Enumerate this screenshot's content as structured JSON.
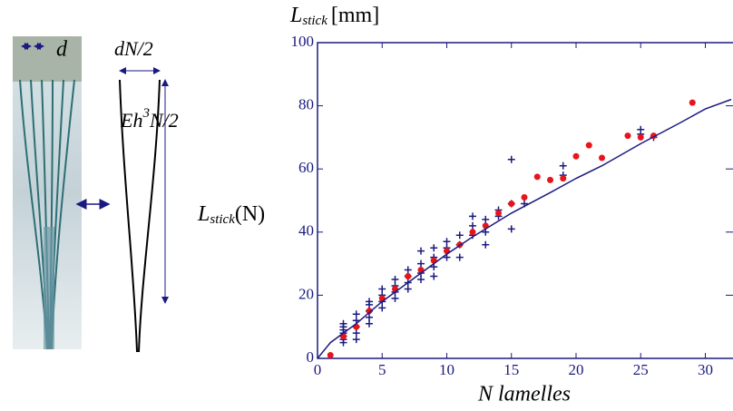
{
  "chart_data": {
    "type": "scatter",
    "y_label": {
      "main": "L",
      "sub": "stick",
      "unit": "[mm]"
    },
    "x_label": "N lamelles",
    "annotations": {
      "d": "d",
      "dN2": "dN/2",
      "eh": {
        "main": "Eh",
        "sup": "3",
        "rest": "N/2"
      },
      "lstick": {
        "main": "L",
        "sub": "stick",
        "rest": "(N)"
      }
    },
    "xlim": [
      0,
      32
    ],
    "ylim": [
      0,
      100
    ],
    "xticks": [
      0,
      5,
      10,
      15,
      20,
      25,
      30
    ],
    "yticks": [
      0,
      20,
      40,
      60,
      80,
      100
    ],
    "series": [
      {
        "marker": "cross",
        "color": "#1a1a80",
        "x": [
          2,
          2,
          2,
          2,
          2,
          2,
          2,
          3,
          3,
          3,
          3,
          3,
          4,
          4,
          4,
          4,
          4,
          5,
          5,
          5,
          5,
          6,
          6,
          6,
          6,
          7,
          7,
          7,
          7,
          8,
          8,
          8,
          8,
          9,
          9,
          9,
          9,
          10,
          10,
          10,
          11,
          11,
          11,
          12,
          12,
          12,
          13,
          13,
          13,
          14,
          14,
          15,
          15,
          15,
          16,
          19,
          19,
          25,
          25,
          26
        ],
        "values": [
          5,
          6,
          7,
          8,
          9,
          10,
          11,
          6,
          8,
          10,
          12,
          14,
          11,
          13,
          15,
          17,
          18,
          16,
          18,
          20,
          22,
          19,
          21,
          23,
          25,
          22,
          24,
          26,
          28,
          25,
          27,
          30,
          34,
          26,
          29,
          32,
          35,
          32,
          35,
          37,
          32,
          36,
          39,
          39,
          42,
          45,
          36,
          40,
          44,
          45,
          47,
          41,
          49,
          63,
          49,
          58,
          61,
          71,
          72.5,
          70
        ]
      },
      {
        "marker": "dot",
        "color": "#e8141a",
        "x": [
          1,
          2,
          3,
          4,
          5,
          6,
          7,
          8,
          9,
          10,
          11,
          12,
          13,
          14,
          15,
          16,
          17,
          18,
          19,
          20,
          21,
          22,
          24,
          25,
          26,
          29
        ],
        "values": [
          1,
          7,
          10,
          15,
          19,
          22,
          26,
          28,
          31,
          34,
          36,
          40,
          42,
          46,
          49,
          51,
          57.5,
          56.5,
          57,
          64,
          67.5,
          63.5,
          70.5,
          70,
          70.5,
          81
        ]
      },
      {
        "marker": "line",
        "color": "#1a1a80",
        "x": [
          0,
          1,
          2,
          3,
          5,
          7,
          10,
          12,
          15,
          18,
          20,
          22,
          25,
          28,
          30,
          32
        ],
        "values": [
          0,
          5,
          8,
          11,
          18,
          24,
          33,
          38.5,
          46,
          52.5,
          57,
          61,
          68,
          74.5,
          79,
          82
        ]
      }
    ]
  }
}
